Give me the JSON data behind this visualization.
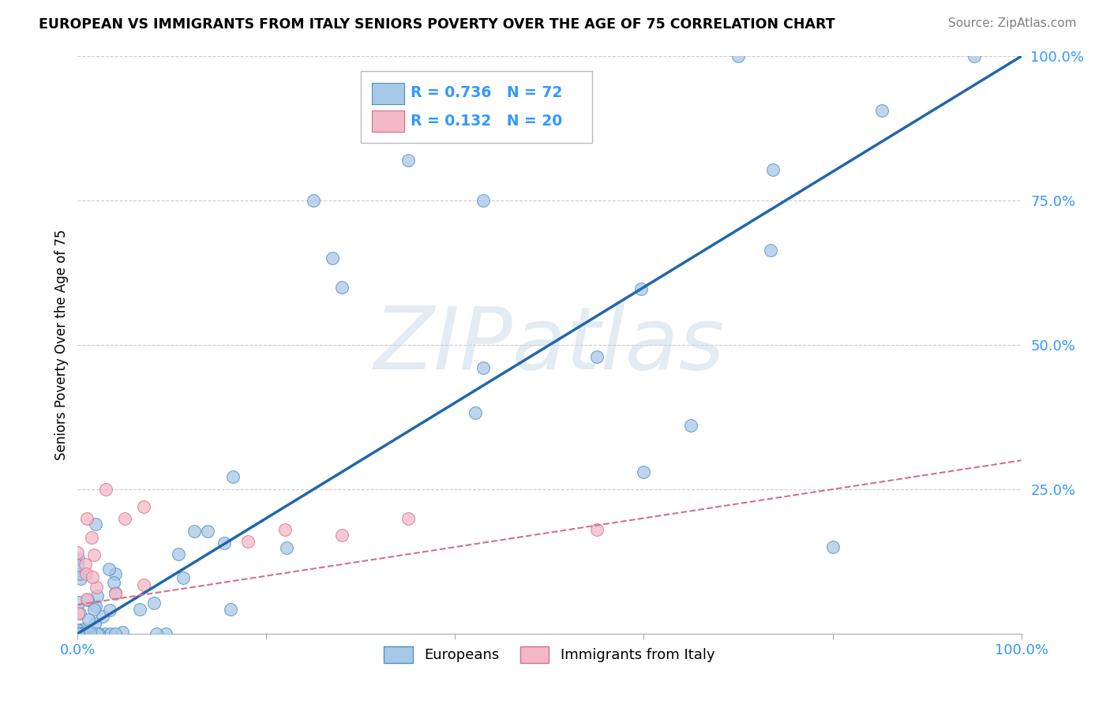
{
  "title": "EUROPEAN VS IMMIGRANTS FROM ITALY SENIORS POVERTY OVER THE AGE OF 75 CORRELATION CHART",
  "source": "Source: ZipAtlas.com",
  "ylabel": "Seniors Poverty Over the Age of 75",
  "watermark": "ZIPatlas",
  "europeans_R": 0.736,
  "europeans_N": 72,
  "italy_R": 0.132,
  "italy_N": 20,
  "blue_color": "#a8c8e8",
  "blue_edge_color": "#4d8fbd",
  "blue_line_color": "#2166ac",
  "pink_color": "#f4b8c8",
  "pink_edge_color": "#d4708a",
  "pink_line_color": "#d4708a",
  "label_color": "#3399ff",
  "xlim": [
    0,
    100
  ],
  "ylim": [
    0,
    100
  ],
  "blue_line_x0": 0,
  "blue_line_y0": 0,
  "blue_line_x1": 100,
  "blue_line_y1": 100,
  "pink_line_x0": 0,
  "pink_line_y0": 5,
  "pink_line_x1": 100,
  "pink_line_y1": 30
}
